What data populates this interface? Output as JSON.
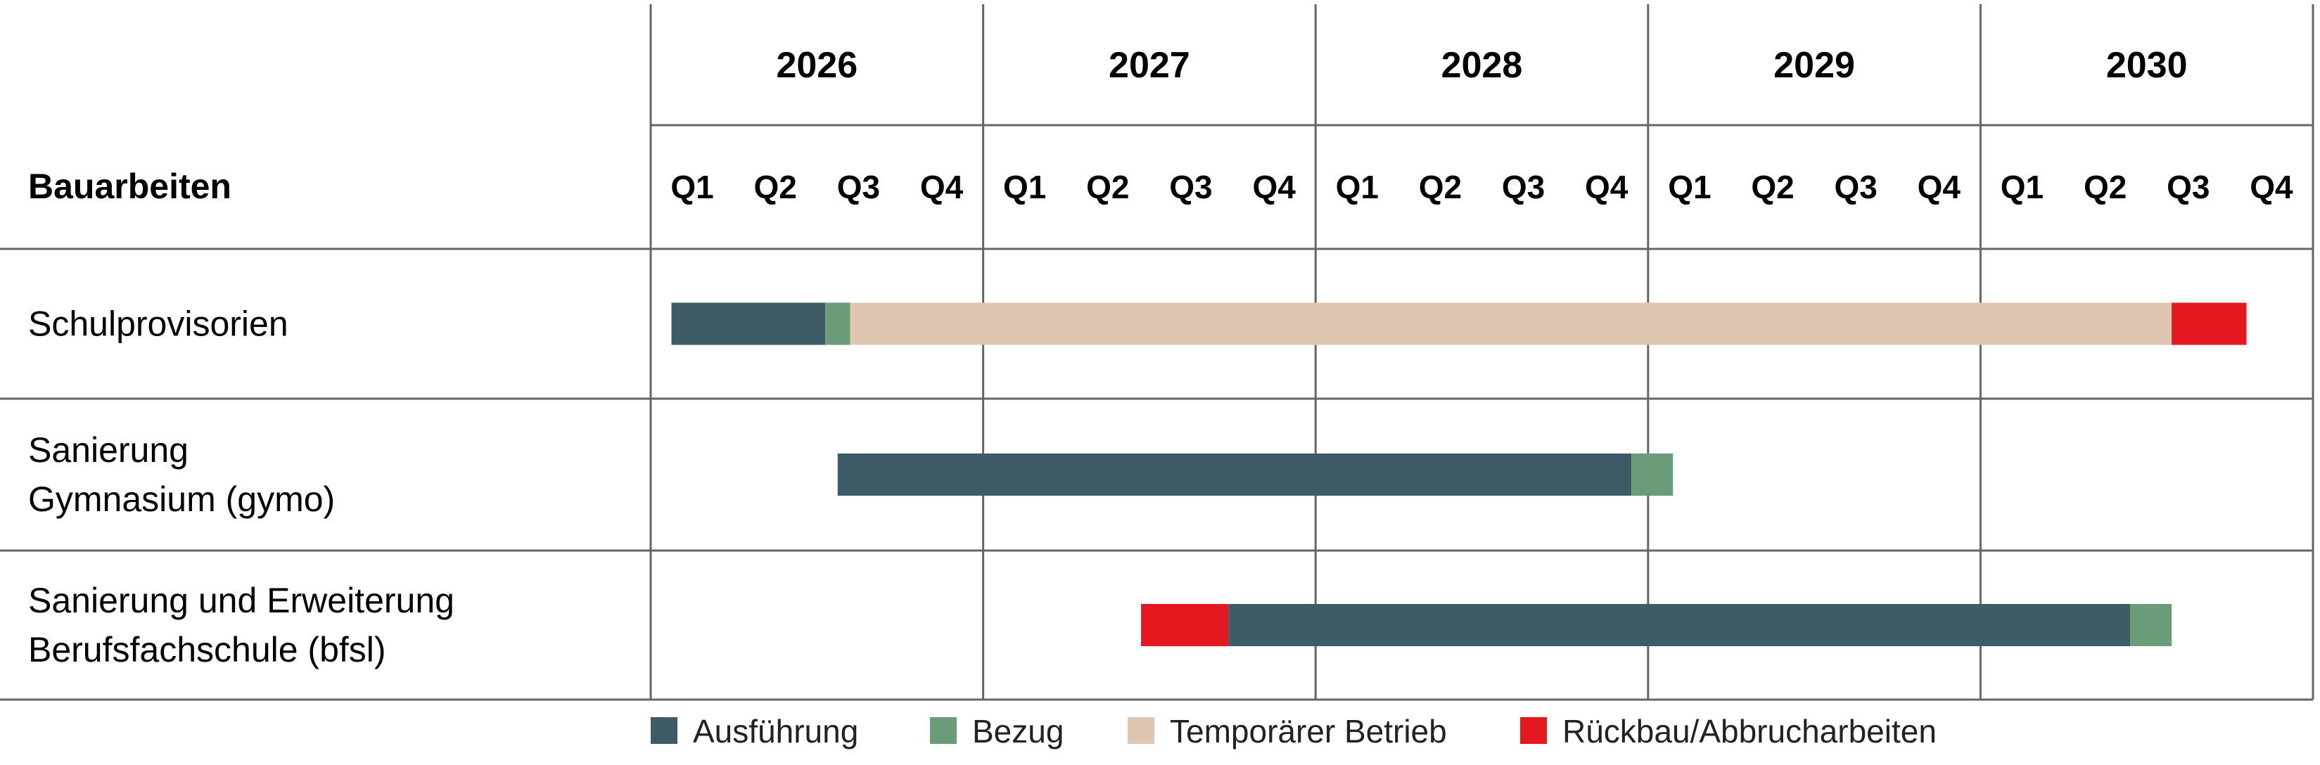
{
  "header": {
    "corner_label": "Bauarbeiten",
    "years": [
      "2026",
      "2027",
      "2028",
      "2029",
      "2030"
    ],
    "quarters": [
      "Q1",
      "Q2",
      "Q3",
      "Q4"
    ]
  },
  "rows": [
    {
      "label_lines": [
        "Schulprovisorien"
      ]
    },
    {
      "label_lines": [
        "Sanierung",
        "Gymnasium (gymo)"
      ]
    },
    {
      "label_lines": [
        "Sanierung und Erweiterung",
        "Berufsfachschule (bfsl)"
      ]
    }
  ],
  "phases": [
    {
      "key": "ausfuehrung",
      "label": "Ausführung",
      "color": "#3d5c66"
    },
    {
      "key": "bezug",
      "label": "Bezug",
      "color": "#6a9c7a"
    },
    {
      "key": "betrieb",
      "label": "Temporärer Betrieb",
      "color": "#dfc6b0"
    },
    {
      "key": "rueckbau",
      "label": "Rückbau/Abbrucharbeiten",
      "color": "#e3191f"
    }
  ],
  "chart_data": {
    "type": "gantt",
    "x_unit": "quarters from start of 2026",
    "xlim": [
      0,
      20
    ],
    "categories": [
      "Schulprovisorien",
      "Sanierung Gymnasium (gymo)",
      "Sanierung und Erweiterung Berufsfachschule (bfsl)"
    ],
    "tasks": [
      {
        "row": 0,
        "phase": "ausfuehrung",
        "start": 0.25,
        "end": 2.1
      },
      {
        "row": 0,
        "phase": "bezug",
        "start": 2.1,
        "end": 2.4
      },
      {
        "row": 0,
        "phase": "betrieb",
        "start": 2.4,
        "end": 18.3
      },
      {
        "row": 0,
        "phase": "rueckbau",
        "start": 18.3,
        "end": 19.2
      },
      {
        "row": 1,
        "phase": "ausfuehrung",
        "start": 2.25,
        "end": 11.8
      },
      {
        "row": 1,
        "phase": "bezug",
        "start": 11.8,
        "end": 12.3
      },
      {
        "row": 2,
        "phase": "rueckbau",
        "start": 5.9,
        "end": 6.95
      },
      {
        "row": 2,
        "phase": "ausfuehrung",
        "start": 6.95,
        "end": 17.8
      },
      {
        "row": 2,
        "phase": "bezug",
        "start": 17.8,
        "end": 18.3
      }
    ]
  }
}
